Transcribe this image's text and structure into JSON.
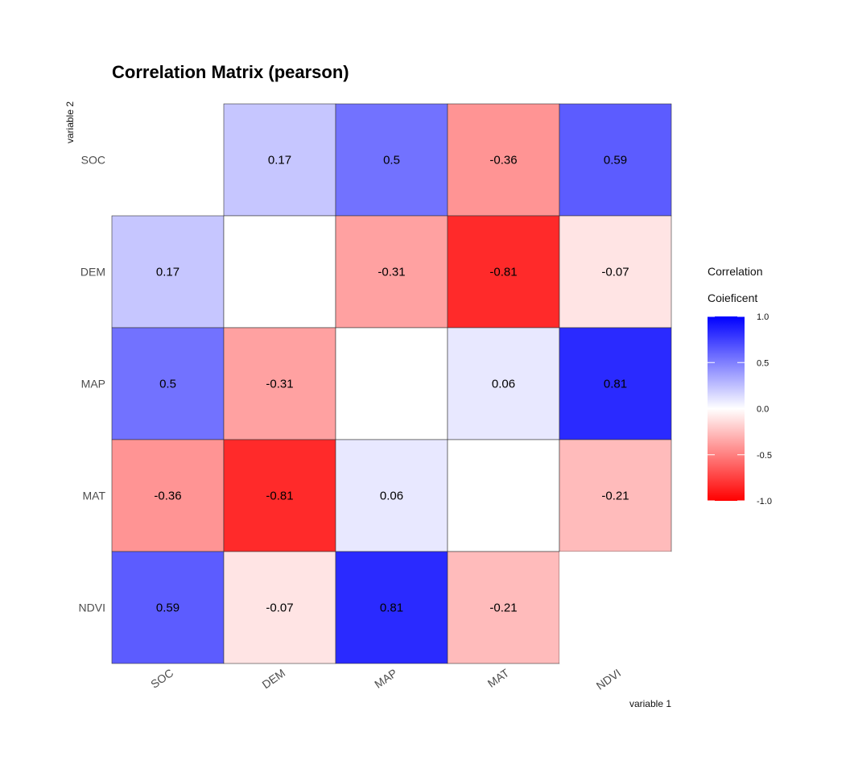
{
  "chart_data": {
    "type": "heatmap",
    "title": "Correlation Matrix (pearson)",
    "xlabel": "variable 1",
    "ylabel": "variable 2",
    "variables": [
      "SOC",
      "DEM",
      "MAP",
      "MAT",
      "NDVI"
    ],
    "matrix": [
      [
        null,
        0.17,
        0.5,
        -0.36,
        0.59
      ],
      [
        0.17,
        null,
        -0.31,
        -0.81,
        -0.07
      ],
      [
        0.5,
        -0.31,
        null,
        0.06,
        0.81
      ],
      [
        -0.36,
        -0.81,
        0.06,
        null,
        -0.21
      ],
      [
        0.59,
        -0.07,
        0.81,
        -0.21,
        null
      ]
    ],
    "labels": [
      [
        "",
        "0.17",
        "0.5",
        "-0.36",
        "0.59"
      ],
      [
        "0.17",
        "",
        "-0.31",
        "-0.81",
        "-0.07"
      ],
      [
        "0.5",
        "-0.31",
        "",
        "0.06",
        "0.81"
      ],
      [
        "-0.36",
        "-0.81",
        "0.06",
        "",
        "-0.21"
      ],
      [
        "0.59",
        "-0.07",
        "0.81",
        "-0.21",
        ""
      ]
    ],
    "color_scale": {
      "low": "#ff0000",
      "mid": "#ffffff",
      "high": "#0000ff",
      "limits": [
        -1.0,
        1.0
      ]
    },
    "legend": {
      "title_line1": "Correlation",
      "title_line2": "Coieficent",
      "ticks": [
        "1.0",
        "0.5",
        "0.0",
        "-0.5",
        "-1.0"
      ],
      "tick_values": [
        1.0,
        0.5,
        0.0,
        -0.5,
        -1.0
      ],
      "position": "right"
    },
    "grid": false
  }
}
